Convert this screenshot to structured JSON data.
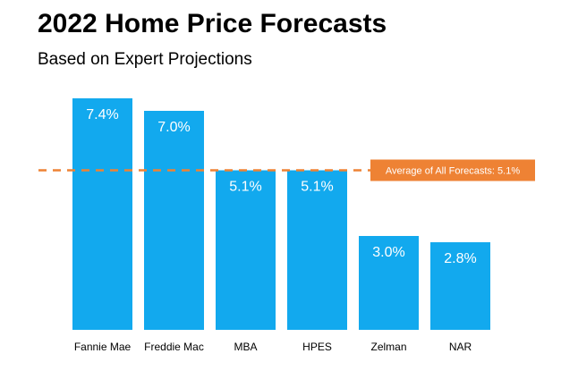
{
  "chart_data": {
    "type": "bar",
    "title": "2022 Home Price Forecasts",
    "subtitle": "Based on Expert Projections",
    "categories": [
      "Fannie Mae",
      "Freddie Mac",
      "MBA",
      "HPES",
      "Zelman",
      "NAR"
    ],
    "values": [
      7.4,
      7.0,
      5.1,
      5.1,
      3.0,
      2.8
    ],
    "value_labels": [
      "7.4%",
      "7.0%",
      "5.1%",
      "5.1%",
      "3.0%",
      "2.8%"
    ],
    "ylim": [
      0,
      7.4
    ],
    "grid": false,
    "legend": "none",
    "average": {
      "value": 5.1,
      "label": "Average of All Forecasts: 5.1%"
    },
    "colors": {
      "bar": "#12A9EE",
      "average_line": "#EE8234",
      "average_box": "#EE8234"
    }
  }
}
